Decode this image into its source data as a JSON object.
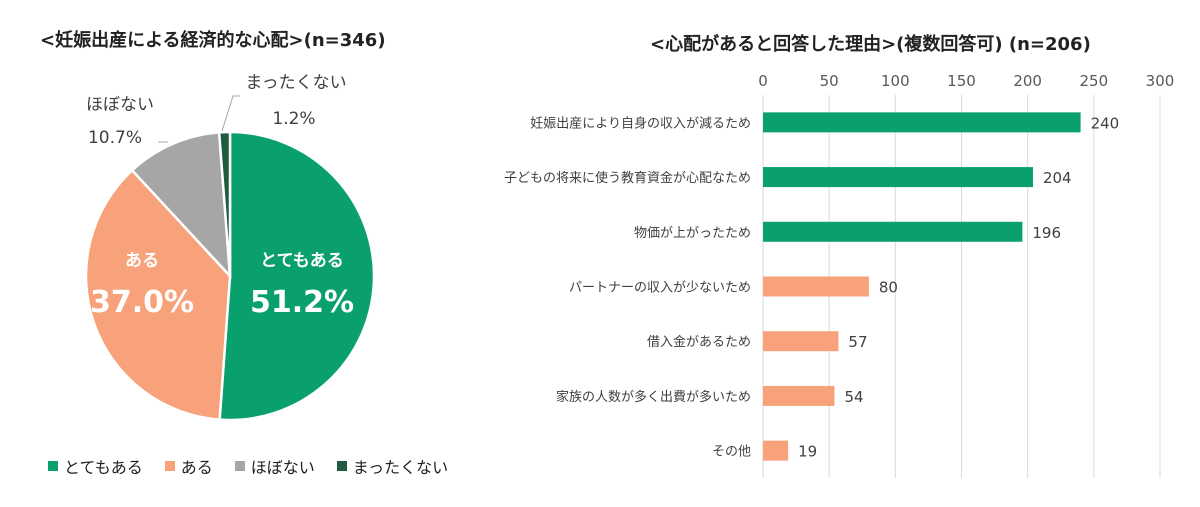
{
  "pie_chart": {
    "title": "<妊娠出産による経済的な心配>(n=346)"
  },
  "bar_chart": {
    "title": "<心配があると回答した理由>(複数回答可) (n=206)"
  },
  "colors": {
    "dark_green": "#1e5b3f",
    "green": "#0aa06e",
    "orange": "#f7a27a",
    "gray": "#a6a6a6",
    "grid": "#d9d9d9"
  },
  "chart_data": [
    {
      "type": "pie",
      "slices": [
        {
          "label": "とてもある",
          "value": 51.2,
          "display": "51.2%",
          "color": "#0aa06e"
        },
        {
          "label": "ある",
          "value": 37.0,
          "display": "37.0%",
          "color": "#f7a27a"
        },
        {
          "label": "ほぼない",
          "value": 10.7,
          "display": "10.7%",
          "color": "#a6a6a6"
        },
        {
          "label": "まったくない",
          "value": 1.2,
          "display": "1.2%",
          "color": "#1e5b3f"
        }
      ],
      "legend": [
        "とてもある",
        "ある",
        "ほぼない",
        "まったくない"
      ],
      "legend_position": "bottom"
    },
    {
      "type": "bar",
      "orientation": "horizontal",
      "categories": [
        "妊娠出産により自身の収入が減るため",
        "子どもの将来に使う教育資金が心配なため",
        "物価が上がったため",
        "パートナーの収入が少ないため",
        "借入金があるため",
        "家族の人数が多く出費が多いため",
        "その他"
      ],
      "values": [
        240,
        204,
        196,
        80,
        57,
        54,
        19
      ],
      "bar_colors": [
        "#0aa06e",
        "#0aa06e",
        "#0aa06e",
        "#f7a27a",
        "#f7a27a",
        "#f7a27a",
        "#f7a27a"
      ],
      "xlim": [
        0,
        300
      ],
      "x_ticks": [
        0,
        50,
        100,
        150,
        200,
        250,
        300
      ],
      "x_axis_position": "top",
      "grid": true
    }
  ]
}
